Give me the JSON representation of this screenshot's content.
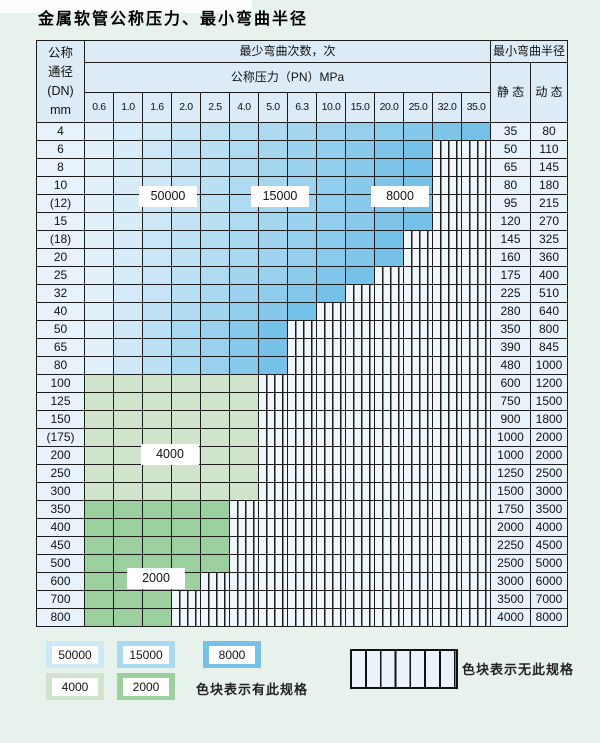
{
  "title": "金属软管公称压力、最小弯曲半径",
  "table": {
    "dn_header_lines": [
      "公称",
      "通径",
      "(DN)",
      "mm"
    ],
    "cycles_header": "最少弯曲次数，次",
    "pressure_header": "公称压力（PN）MPa",
    "radius_header": "最小弯曲半径",
    "static_header": "静 态",
    "dynamic_header": "动 态",
    "pressures": [
      "0.6",
      "1.0",
      "1.6",
      "2.0",
      "2.5",
      "4.0",
      "5.0",
      "6.3",
      "10.0",
      "15.0",
      "20.0",
      "25.0",
      "32.0",
      "35.0"
    ],
    "rows": [
      {
        "dn": "4",
        "colored": 14,
        "zone": "blue",
        "static": "35",
        "dynamic": "80"
      },
      {
        "dn": "6",
        "colored": 12,
        "zone": "blue",
        "static": "50",
        "dynamic": "110"
      },
      {
        "dn": "8",
        "colored": 12,
        "zone": "blue",
        "static": "65",
        "dynamic": "145"
      },
      {
        "dn": "10",
        "colored": 12,
        "zone": "blue",
        "static": "80",
        "dynamic": "180"
      },
      {
        "dn": "(12)",
        "colored": 12,
        "zone": "blue",
        "static": "95",
        "dynamic": "215"
      },
      {
        "dn": "15",
        "colored": 12,
        "zone": "blue",
        "static": "120",
        "dynamic": "270"
      },
      {
        "dn": "(18)",
        "colored": 11,
        "zone": "blue",
        "static": "145",
        "dynamic": "325"
      },
      {
        "dn": "20",
        "colored": 11,
        "zone": "blue",
        "static": "160",
        "dynamic": "360"
      },
      {
        "dn": "25",
        "colored": 10,
        "zone": "blue",
        "static": "175",
        "dynamic": "400"
      },
      {
        "dn": "32",
        "colored": 9,
        "zone": "blue",
        "static": "225",
        "dynamic": "510"
      },
      {
        "dn": "40",
        "colored": 8,
        "zone": "blue",
        "static": "280",
        "dynamic": "640"
      },
      {
        "dn": "50",
        "colored": 7,
        "zone": "blue",
        "static": "350",
        "dynamic": "800"
      },
      {
        "dn": "65",
        "colored": 7,
        "zone": "blue",
        "static": "390",
        "dynamic": "845"
      },
      {
        "dn": "80",
        "colored": 7,
        "zone": "blue",
        "static": "480",
        "dynamic": "1000"
      },
      {
        "dn": "100",
        "colored": 6,
        "zone": "green4000",
        "static": "600",
        "dynamic": "1200"
      },
      {
        "dn": "125",
        "colored": 6,
        "zone": "green4000",
        "static": "750",
        "dynamic": "1500"
      },
      {
        "dn": "150",
        "colored": 6,
        "zone": "green4000",
        "static": "900",
        "dynamic": "1800"
      },
      {
        "dn": "(175)",
        "colored": 6,
        "zone": "green4000",
        "static": "1000",
        "dynamic": "2000"
      },
      {
        "dn": "200",
        "colored": 6,
        "zone": "green4000",
        "static": "1000",
        "dynamic": "2000"
      },
      {
        "dn": "250",
        "colored": 6,
        "zone": "green4000",
        "static": "1250",
        "dynamic": "2500"
      },
      {
        "dn": "300",
        "colored": 6,
        "zone": "green4000",
        "static": "1500",
        "dynamic": "3000"
      },
      {
        "dn": "350",
        "colored": 5,
        "zone": "green2000",
        "static": "1750",
        "dynamic": "3500"
      },
      {
        "dn": "400",
        "colored": 5,
        "zone": "green2000",
        "static": "2000",
        "dynamic": "4000"
      },
      {
        "dn": "450",
        "colored": 5,
        "zone": "green2000",
        "static": "2250",
        "dynamic": "4500"
      },
      {
        "dn": "500",
        "colored": 5,
        "zone": "green2000",
        "static": "2500",
        "dynamic": "5000"
      },
      {
        "dn": "600",
        "colored": 4,
        "zone": "green2000",
        "static": "3000",
        "dynamic": "6000"
      },
      {
        "dn": "700",
        "colored": 3,
        "zone": "green2000",
        "static": "3500",
        "dynamic": "7000"
      },
      {
        "dn": "800",
        "colored": 3,
        "zone": "green2000",
        "static": "4000",
        "dynamic": "8000"
      }
    ]
  },
  "overlays": {
    "l50000": "50000",
    "l15000": "15000",
    "l8000": "8000",
    "l4000": "4000",
    "l2000": "2000"
  },
  "colors": {
    "blue_light": "#e2f0fa",
    "blue_mid": "#a9d8f1",
    "blue_dark": "#76c1e8",
    "green_4000": "#cfe4cb",
    "green_2000": "#9dd09f",
    "swatch_50000": "#cfe8f8",
    "swatch_15000": "#a9d8f1",
    "swatch_8000": "#76c1e8",
    "header_bg": "#dcebf6",
    "plain_cell_bg": "#e7f2fa",
    "grid_line": "#1c1c1c"
  },
  "legend": {
    "items": [
      {
        "label": "50000",
        "color_key": "swatch_50000"
      },
      {
        "label": "15000",
        "color_key": "swatch_15000"
      },
      {
        "label": "8000",
        "color_key": "swatch_8000"
      },
      {
        "label": "4000",
        "color_key": "green_4000"
      },
      {
        "label": "2000",
        "color_key": "green_2000"
      }
    ],
    "has_spec_text": "色块表示有此规格",
    "no_spec_text": "色块表示无此规格"
  }
}
